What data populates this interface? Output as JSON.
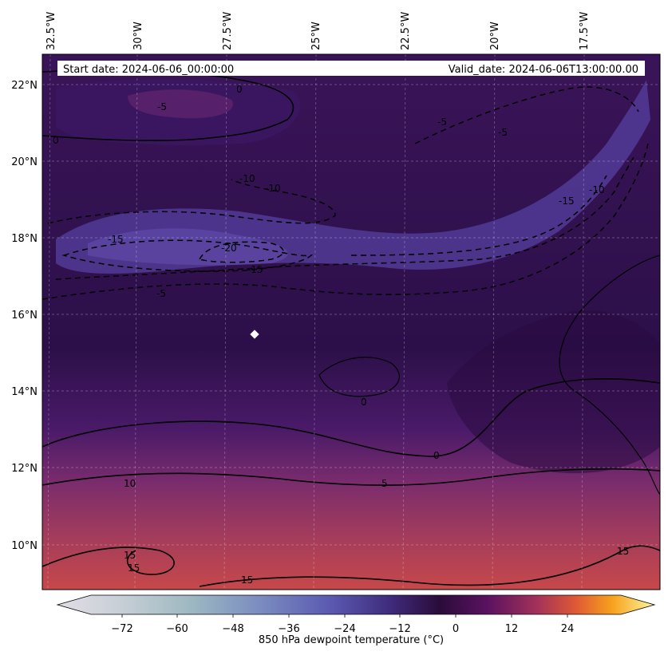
{
  "map": {
    "start_date_text": "Start date: 2024-06-06_00:00:00",
    "valid_date_text": "Valid_date: 2024-06-06T13:00:00.00",
    "lon_labels": [
      "32.5°W",
      "30°W",
      "27.5°W",
      "25°W",
      "22.5°W",
      "20°W",
      "17.5°W"
    ],
    "lat_labels": [
      "22°N",
      "20°N",
      "18°N",
      "16°N",
      "14°N",
      "12°N",
      "10°N"
    ],
    "contour_labels": [
      "0",
      "0",
      "-5",
      "-5",
      "-5",
      "-5",
      "-10",
      "-10",
      "-10",
      "-15",
      "-15",
      "-15",
      "-20",
      "0",
      "0",
      "5",
      "10",
      "15",
      "15",
      "15",
      "15"
    ],
    "colorbar": {
      "label": "850 hPa dewpoint temperature ($^\\circ$C)",
      "label_display": "850 hPa dewpoint temperature (°C)",
      "ticks": [
        "−72",
        "−60",
        "−48",
        "−36",
        "−24",
        "−12",
        "0",
        "12",
        "24"
      ]
    }
  },
  "colors": {
    "very_dry": "#e2dde6",
    "dry_blue": "#5a63b8",
    "moist_purple": "#3c1557",
    "deep_purple": "#240c3f",
    "warm_magenta": "#7b2b6e",
    "hot_red": "#c94b48",
    "hot_orange": "#f2a13b",
    "hot_yellow": "#fcf9a3",
    "marker": "#ffffff"
  }
}
